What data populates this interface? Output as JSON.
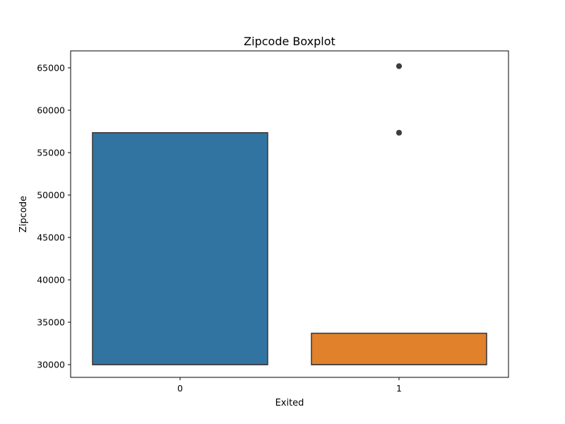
{
  "chart_data": {
    "type": "boxplot",
    "title": "Zipcode Boxplot",
    "xlabel": "Exited",
    "ylabel": "Zipcode",
    "categories": [
      "0",
      "1"
    ],
    "ylim": [
      28500,
      67000
    ],
    "yticks": [
      30000,
      35000,
      40000,
      45000,
      50000,
      55000,
      60000,
      65000
    ],
    "grid": false,
    "boxes": [
      {
        "category": "0",
        "q1": 30000,
        "median": 30000,
        "q3": 57350,
        "whisker_low": 30000,
        "whisker_high": 57350,
        "outliers": [],
        "color": "#3274a1"
      },
      {
        "category": "1",
        "q1": 30000,
        "median": 30000,
        "q3": 33700,
        "whisker_low": 30000,
        "whisker_high": 33700,
        "outliers": [
          57350,
          65200
        ],
        "color": "#e1812c"
      }
    ],
    "edge_color": "#3d3d3d"
  }
}
